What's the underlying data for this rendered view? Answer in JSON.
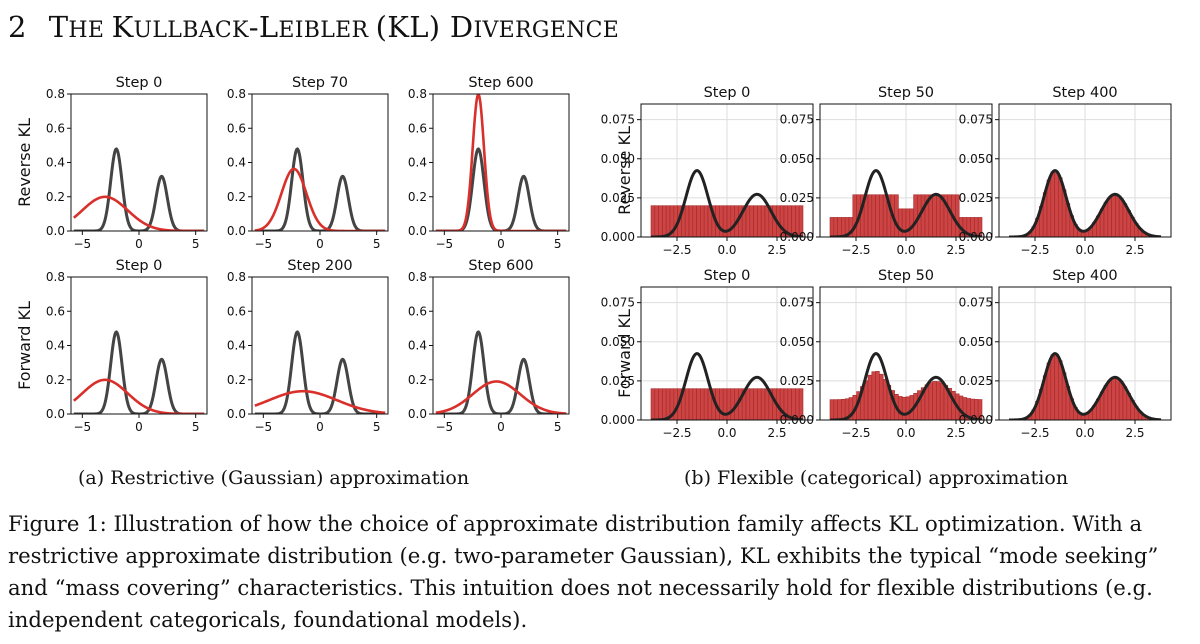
{
  "section": {
    "number": "2",
    "title_parts": [
      {
        "text": "T",
        "cls": "big"
      },
      {
        "text": "HE ",
        "cls": "small"
      },
      {
        "text": "K",
        "cls": "big"
      },
      {
        "text": "ULLBACK",
        "cls": "small"
      },
      {
        "text": "-",
        "cls": "big"
      },
      {
        "text": "L",
        "cls": "big"
      },
      {
        "text": "EIBLER ",
        "cls": "small"
      },
      {
        "text": "(KL) ",
        "cls": "big"
      },
      {
        "text": "D",
        "cls": "big"
      },
      {
        "text": "IVERGENCE",
        "cls": "small"
      }
    ]
  },
  "colors": {
    "target": "#444444",
    "approx": "#d9302b",
    "bar_fill": "#cc4444",
    "bar_edge": "#a52a2a",
    "grid": "#dddddd"
  },
  "chart_data": [
    {
      "panel": "a",
      "type": "line",
      "title": "Restrictive (Gaussian) approximation",
      "rows": [
        "Reverse KL",
        "Forward KL"
      ],
      "xlim": [
        -6,
        6
      ],
      "ylim": [
        0,
        0.8
      ],
      "xticks": [
        -5,
        0,
        5
      ],
      "xtick_labels": [
        "−5",
        "0",
        "5"
      ],
      "yticks": [
        0,
        0.2,
        0.4,
        0.6,
        0.8
      ],
      "ytick_labels": [
        "0.0",
        "0.2",
        "0.4",
        "0.6",
        "0.8"
      ],
      "target": {
        "components": [
          {
            "mean": -2,
            "std": 0.5,
            "weight": 0.6
          },
          {
            "mean": 2,
            "std": 0.5,
            "weight": 0.4
          }
        ]
      },
      "subplots": [
        {
          "row": 0,
          "col": 0,
          "title": "Step 0",
          "approx": {
            "mean": -3,
            "std": 2.0
          }
        },
        {
          "row": 0,
          "col": 1,
          "title": "Step 70",
          "approx": {
            "mean": -2.3,
            "std": 1.1
          }
        },
        {
          "row": 0,
          "col": 2,
          "title": "Step 600",
          "approx": {
            "mean": -2,
            "std": 0.5
          }
        },
        {
          "row": 1,
          "col": 0,
          "title": "Step 0",
          "approx": {
            "mean": -3,
            "std": 2.0
          }
        },
        {
          "row": 1,
          "col": 1,
          "title": "Step 200",
          "approx": {
            "mean": -1.5,
            "std": 3.0
          }
        },
        {
          "row": 1,
          "col": 2,
          "title": "Step 600",
          "approx": {
            "mean": -0.4,
            "std": 2.1
          }
        }
      ]
    },
    {
      "panel": "b",
      "type": "bar",
      "title": "Flexible (categorical) approximation",
      "rows": [
        "Reverse KL",
        "Forward KL"
      ],
      "xlim": [
        -4.3,
        4.3
      ],
      "ylim": [
        0,
        0.085
      ],
      "xticks": [
        -2.5,
        0,
        2.5
      ],
      "xtick_labels": [
        "−2.5",
        "0.0",
        "2.5"
      ],
      "yticks": [
        0,
        0.025,
        0.05,
        0.075
      ],
      "ytick_labels": [
        "0.000",
        "0.025",
        "0.050",
        "0.075"
      ],
      "bins": {
        "start": -3.8,
        "end": 3.8,
        "count": 40
      },
      "target": {
        "components": [
          {
            "mean": -1.5,
            "std": 0.55,
            "weight": 0.55
          },
          {
            "mean": 1.5,
            "std": 0.7,
            "weight": 0.45
          }
        ]
      },
      "subplots": [
        {
          "row": 0,
          "col": 0,
          "title": "Step 0",
          "approx": {
            "kind": "uniform",
            "value": 0.02
          }
        },
        {
          "row": 0,
          "col": 1,
          "title": "Step 50",
          "approx": {
            "kind": "plateau",
            "base": 0.0125,
            "peak": 0.027,
            "dip": 0.018
          }
        },
        {
          "row": 0,
          "col": 2,
          "title": "Step 400",
          "approx": {
            "kind": "target"
          }
        },
        {
          "row": 1,
          "col": 0,
          "title": "Step 0",
          "approx": {
            "kind": "uniform",
            "value": 0.02
          }
        },
        {
          "row": 1,
          "col": 1,
          "title": "Step 50",
          "approx": {
            "kind": "blend",
            "base": 0.013,
            "scale": 0.43
          }
        },
        {
          "row": 1,
          "col": 2,
          "title": "Step 400",
          "approx": {
            "kind": "target"
          }
        }
      ]
    }
  ],
  "captions": {
    "a": "(a) Restrictive (Gaussian) approximation",
    "b": "(b) Flexible (categorical) approximation"
  },
  "figure_caption": "Figure 1: Illustration of how the choice of approximate distribution family affects KL optimization. With a restrictive approximate distribution (e.g. two-parameter Gaussian), KL exhibits the typical “mode seeking” and “mass covering” characteristics. This intuition does not necessarily hold for flexible distributions (e.g. independent categoricals, foundational models)."
}
